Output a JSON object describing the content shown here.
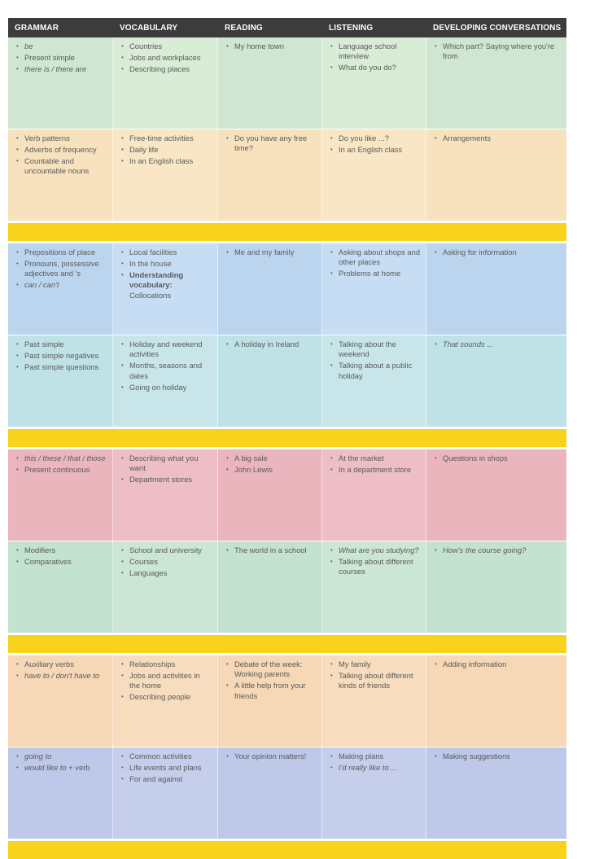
{
  "headers": [
    "GRAMMAR",
    "VOCABULARY",
    "READING",
    "LISTENING",
    "DEVELOPING CONVERSATIONS"
  ],
  "units": [
    {
      "rows": [
        {
          "grammar": [
            {
              "t": "be",
              "s": "it"
            },
            {
              "t": "Present simple"
            },
            {
              "t": "there is / there are",
              "s": "it"
            }
          ],
          "vocabulary": [
            {
              "t": "Countries"
            },
            {
              "t": "Jobs and workplaces"
            },
            {
              "t": "Describing places"
            }
          ],
          "reading": [
            {
              "t": "My home town"
            }
          ],
          "listening": [
            {
              "t": "Language school interview"
            },
            {
              "t": "What do you do?"
            }
          ],
          "conversations": [
            {
              "t": "Which part? Saying where you're from"
            }
          ]
        },
        {
          "grammar": [
            {
              "t": "Verb patterns"
            },
            {
              "t": "Adverbs of frequency"
            },
            {
              "t": "Countable and uncountable nouns"
            }
          ],
          "vocabulary": [
            {
              "t": "Free-time activities"
            },
            {
              "t": "Daily life"
            },
            {
              "t": "In an English class"
            }
          ],
          "reading": [
            {
              "t": "Do you have any free time?"
            }
          ],
          "listening": [
            {
              "t": "Do you like ...?"
            },
            {
              "t": "In an English class"
            }
          ],
          "conversations": [
            {
              "t": "Arrangements"
            }
          ]
        }
      ]
    },
    {
      "rows": [
        {
          "grammar": [
            {
              "t": "Prepositions of place"
            },
            {
              "t": "Pronouns, possessive adjectives and 's"
            },
            {
              "t": "can / can't",
              "s": "it"
            }
          ],
          "vocabulary": [
            {
              "t": "Local facilities"
            },
            {
              "t": "In the house"
            },
            {
              "t": "Understanding vocabulary:",
              "s": "b",
              "tail": "Collocations"
            }
          ],
          "reading": [
            {
              "t": "Me and my family"
            }
          ],
          "listening": [
            {
              "t": "Asking about shops and other places"
            },
            {
              "t": "Problems at home"
            }
          ],
          "conversations": [
            {
              "t": "Asking for information"
            }
          ]
        },
        {
          "grammar": [
            {
              "t": "Past simple"
            },
            {
              "t": "Past simple negatives"
            },
            {
              "t": "Past simple questions"
            }
          ],
          "vocabulary": [
            {
              "t": "Holiday and weekend activities"
            },
            {
              "t": "Months, seasons and dates"
            },
            {
              "t": "Going on holiday"
            }
          ],
          "reading": [
            {
              "t": "A holiday in Ireland"
            }
          ],
          "listening": [
            {
              "t": "Talking about the weekend"
            },
            {
              "t": "Talking about a public holiday"
            }
          ],
          "conversations": [
            {
              "t": "That sounds ...",
              "s": "it"
            }
          ]
        }
      ]
    },
    {
      "rows": [
        {
          "grammar": [
            {
              "t": "this / these / that / those",
              "s": "it"
            },
            {
              "t": "Present continuous"
            }
          ],
          "vocabulary": [
            {
              "t": "Describing what you want"
            },
            {
              "t": "Department stores"
            }
          ],
          "reading": [
            {
              "t": "A big sale"
            },
            {
              "t": "John Lewis"
            }
          ],
          "listening": [
            {
              "t": "At the market"
            },
            {
              "t": "In a department store"
            }
          ],
          "conversations": [
            {
              "t": "Questions in shops"
            }
          ]
        },
        {
          "grammar": [
            {
              "t": "Modifiers"
            },
            {
              "t": "Comparatives"
            }
          ],
          "vocabulary": [
            {
              "t": "School and university"
            },
            {
              "t": "Courses"
            },
            {
              "t": "Languages"
            }
          ],
          "reading": [
            {
              "t": "The world in a school"
            }
          ],
          "listening": [
            {
              "t": "What are you studying?",
              "s": "it"
            },
            {
              "t": "Talking about different courses"
            }
          ],
          "conversations": [
            {
              "t": "How's the course going?",
              "s": "it"
            }
          ]
        }
      ]
    },
    {
      "rows": [
        {
          "grammar": [
            {
              "t": "Auxiliary verbs"
            },
            {
              "t": "have to / don't have to",
              "s": "it"
            }
          ],
          "vocabulary": [
            {
              "t": "Relationships"
            },
            {
              "t": "Jobs and activities in the home"
            },
            {
              "t": "Describing people"
            }
          ],
          "reading": [
            {
              "t": "Debate of the week: Working parents"
            },
            {
              "t": "A little help from your friends"
            }
          ],
          "listening": [
            {
              "t": "My family"
            },
            {
              "t": "Talking about different kinds of friends"
            }
          ],
          "conversations": [
            {
              "t": "Adding information"
            }
          ]
        },
        {
          "grammar": [
            {
              "t": "going to",
              "s": "it"
            },
            {
              "t": "would like to",
              "s": "it",
              "tail": "+ verb"
            }
          ],
          "vocabulary": [
            {
              "t": "Common activities"
            },
            {
              "t": "Life events and plans"
            },
            {
              "t": "For and against"
            }
          ],
          "reading": [
            {
              "t": "Your opinion matters!"
            }
          ],
          "listening": [
            {
              "t": "Making plans"
            },
            {
              "t": "I'd really like to ...",
              "s": "it"
            }
          ],
          "conversations": [
            {
              "t": "Making suggestions"
            }
          ]
        }
      ]
    }
  ],
  "row_colors": [
    "g",
    "o",
    "bl",
    "tl",
    "p",
    "gg",
    "pe",
    "pu"
  ]
}
